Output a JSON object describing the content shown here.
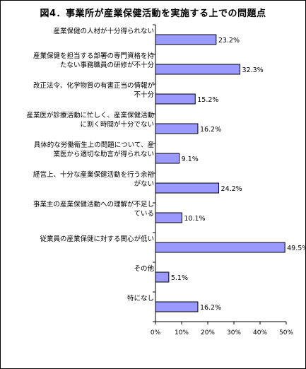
{
  "chart_data": {
    "type": "bar",
    "orientation": "horizontal",
    "title": "図4．事業所が産業保健活動を実施する上での問題点",
    "categories": [
      "産業保健の人材が十分得られない",
      "産業保健を担当する部署の専門資格を持\nたない事務職員の研修が不十分",
      "改正法令、化学物質の有害正当の情報が\n不十分",
      "産業医が診療活動に忙しく、産業保健活動\nに割く時間が十分でない",
      "具体的な労働衛生上の問題について、産\n業医から適切な助言が得られない",
      "経営上、十分な産業保健活動を行う余裕\nがない",
      "事業主の産業保健活動への理解が不足し\nている",
      "従業員の産業保健に対する関心が低い",
      "その他",
      "特になし"
    ],
    "values": [
      23.2,
      32.3,
      15.2,
      16.2,
      9.1,
      24.2,
      10.1,
      49.5,
      5.1,
      16.2
    ],
    "data_labels": [
      "23.2%",
      "32.3%",
      "15.2%",
      "16.2%",
      "9.1%",
      "24.2%",
      "10.1%",
      "49.5%",
      "5.1%",
      "16.2%"
    ],
    "xlim": [
      0,
      50
    ],
    "xticks": [
      "0%",
      "10%",
      "20%",
      "30%",
      "40%",
      "50%"
    ],
    "xlabel": "",
    "ylabel": "",
    "grid": false,
    "legend": "none"
  },
  "colors": {
    "bar_fill": "#9999ff",
    "bar_stroke": "#000000",
    "axis": "#000000"
  }
}
